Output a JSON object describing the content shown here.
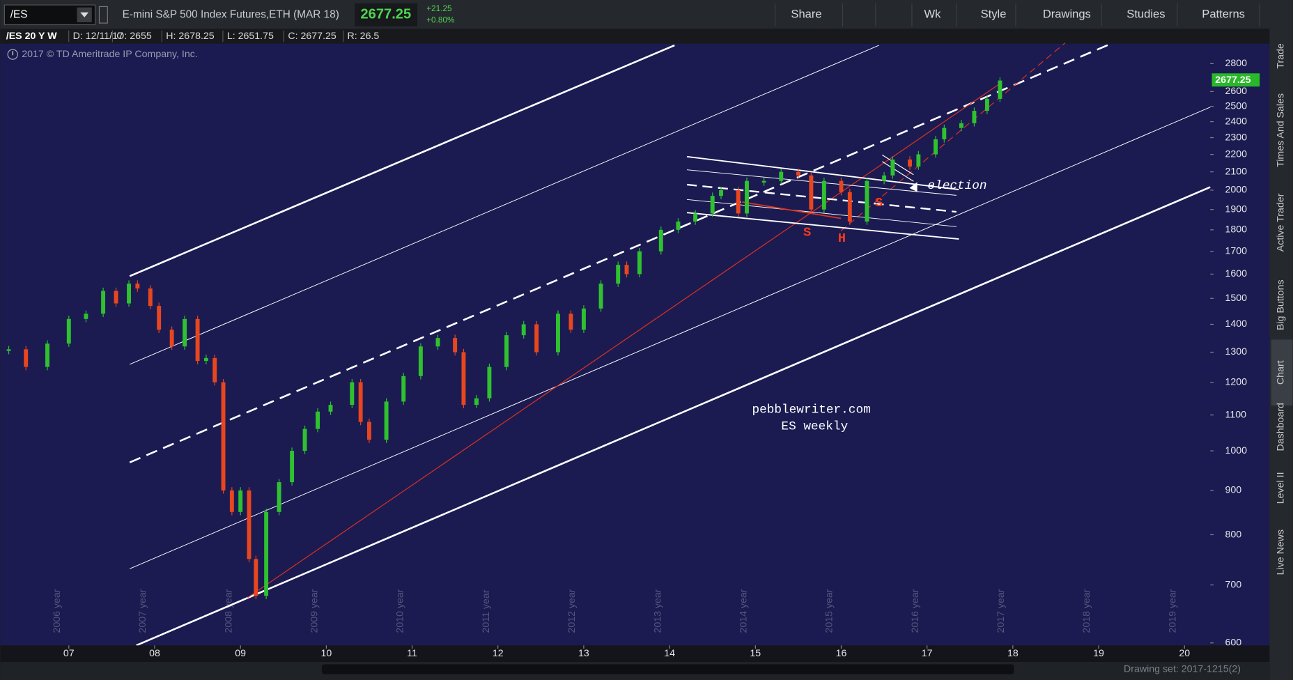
{
  "toolbar": {
    "symbol": "/ES",
    "description": "E-mini S&P 500 Index Futures,ETH (MAR 18)",
    "last": "2677.25",
    "change": "+21.25",
    "change_pct": "+0.80%",
    "buttons": [
      "Share",
      "Wk",
      "Style",
      "Drawings",
      "Studies",
      "Patterns"
    ]
  },
  "header": {
    "title": "/ES 20 Y W",
    "fields": [
      "D: 12/11/17",
      "O: 2655",
      "H: 2678.25",
      "L: 2651.75",
      "C: 2677.25",
      "R: 26.5"
    ],
    "copyright": "2017 © TD Ameritrade IP Company, Inc."
  },
  "chart_data": {
    "type": "candlestick",
    "x": [
      2006.3,
      2006.5,
      2006.75,
      2007.0,
      2007.2,
      2007.4,
      2007.55,
      2007.7,
      2007.8,
      2007.95,
      2008.05,
      2008.2,
      2008.35,
      2008.5,
      2008.6,
      2008.7,
      2008.8,
      2008.9,
      2009.0,
      2009.1,
      2009.18,
      2009.3,
      2009.45,
      2009.6,
      2009.75,
      2009.9,
      2010.05,
      2010.3,
      2010.4,
      2010.5,
      2010.7,
      2010.9,
      2011.1,
      2011.3,
      2011.5,
      2011.6,
      2011.75,
      2011.9,
      2012.1,
      2012.3,
      2012.45,
      2012.7,
      2012.85,
      2013.0,
      2013.2,
      2013.4,
      2013.5,
      2013.65,
      2013.9,
      2014.1,
      2014.3,
      2014.5,
      2014.6,
      2014.8,
      2014.9,
      2015.1,
      2015.3,
      2015.5,
      2015.65,
      2015.8,
      2016.0,
      2016.1,
      2016.3,
      2016.5,
      2016.6,
      2016.8,
      2016.9,
      2017.1,
      2017.2,
      2017.4,
      2017.55,
      2017.7,
      2017.85
    ],
    "values": [
      1310,
      1250,
      1330,
      1420,
      1440,
      1530,
      1480,
      1560,
      1540,
      1470,
      1380,
      1320,
      1420,
      1270,
      1280,
      1200,
      900,
      850,
      900,
      750,
      680,
      850,
      920,
      1000,
      1060,
      1110,
      1130,
      1200,
      1080,
      1030,
      1140,
      1220,
      1320,
      1350,
      1300,
      1130,
      1150,
      1250,
      1360,
      1400,
      1300,
      1440,
      1380,
      1460,
      1560,
      1640,
      1600,
      1700,
      1800,
      1840,
      1880,
      1970,
      2000,
      1880,
      2050,
      2050,
      2100,
      2080,
      1900,
      2050,
      1990,
      1840,
      2050,
      2080,
      2170,
      2130,
      2200,
      2290,
      2360,
      2390,
      2470,
      2550,
      2677.25
    ],
    "up_color": "#2fc12f",
    "down_color": "#e8461e",
    "log": true,
    "grid": false,
    "xlim": [
      2006.25,
      2020.3
    ],
    "ylim": [
      600,
      2940
    ],
    "xticks": [
      {
        "value": 2007,
        "label": "07"
      },
      {
        "value": 2008,
        "label": "08"
      },
      {
        "value": 2009,
        "label": "09"
      },
      {
        "value": 2010,
        "label": "10"
      },
      {
        "value": 2011,
        "label": "11"
      },
      {
        "value": 2012,
        "label": "12"
      },
      {
        "value": 2013,
        "label": "13"
      },
      {
        "value": 2014,
        "label": "14"
      },
      {
        "value": 2015,
        "label": "15"
      },
      {
        "value": 2016,
        "label": "16"
      },
      {
        "value": 2017,
        "label": "17"
      },
      {
        "value": 2018,
        "label": "18"
      },
      {
        "value": 2019,
        "label": "19"
      },
      {
        "value": 2020,
        "label": "20"
      }
    ],
    "period_labels": [
      "2006 year",
      "2007 year",
      "2008 year",
      "2009 year",
      "2010 year",
      "2011 year",
      "2012 year",
      "2013 year",
      "2014 year",
      "2015 year",
      "2016 year",
      "2017 year",
      "2018 year",
      "2019 year"
    ],
    "yticks": [
      600,
      700,
      800,
      900,
      1000,
      1100,
      1200,
      1300,
      1400,
      1500,
      1600,
      1700,
      1800,
      1900,
      2000,
      2100,
      2200,
      2300,
      2400,
      2500,
      2600,
      2800
    ],
    "last_label": "2677.25",
    "annotations": [
      "S",
      "H",
      "S",
      "election",
      "pebblewriter.com",
      "ES weekly"
    ]
  },
  "side_tabs": [
    "Trade",
    "Times And Sales",
    "Active Trader",
    "Big Buttons",
    "Chart",
    "Dashboard",
    "Level II",
    "Live News"
  ],
  "footer": {
    "drawing_set": "Drawing set: 2017-1215(2)"
  }
}
